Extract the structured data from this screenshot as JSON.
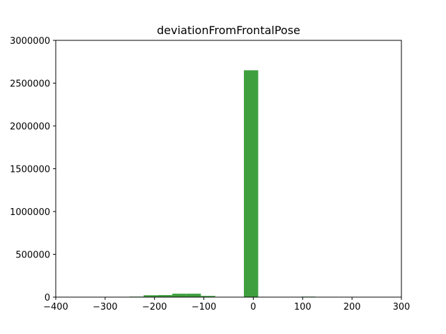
{
  "chart_data": {
    "type": "bar",
    "title": "deviationFromFrontalPose",
    "xlabel": "",
    "ylabel": "",
    "xlim": [
      -400,
      300
    ],
    "ylim": [
      0,
      3000000
    ],
    "xticks": [
      -400,
      -300,
      -200,
      -100,
      0,
      100,
      200,
      300
    ],
    "xtick_labels": [
      "−400",
      "−300",
      "−200",
      "−100",
      "0",
      "100",
      "200",
      "300"
    ],
    "yticks": [
      0,
      500000,
      1000000,
      1500000,
      2000000,
      2500000,
      3000000
    ],
    "ytick_labels": [
      "0",
      "500000",
      "1000000",
      "1500000",
      "2000000",
      "2500000",
      "3000000"
    ],
    "grid": false,
    "bar_color": "#3f9f3f",
    "bins": [
      {
        "x0": -280,
        "x1": -251,
        "value": 3000
      },
      {
        "x0": -251,
        "x1": -222,
        "value": 6000
      },
      {
        "x0": -222,
        "x1": -193,
        "value": 22000
      },
      {
        "x0": -193,
        "x1": -164,
        "value": 24000
      },
      {
        "x0": -164,
        "x1": -135,
        "value": 40000
      },
      {
        "x0": -135,
        "x1": -106,
        "value": 40000
      },
      {
        "x0": -106,
        "x1": -77,
        "value": 14000
      },
      {
        "x0": -77,
        "x1": -48,
        "value": 0
      },
      {
        "x0": -48,
        "x1": -19,
        "value": 0
      },
      {
        "x0": -19,
        "x1": 10,
        "value": 2650000
      },
      {
        "x0": 10,
        "x1": 39,
        "value": 0
      },
      {
        "x0": 39,
        "x1": 68,
        "value": 0
      },
      {
        "x0": 68,
        "x1": 97,
        "value": 0
      },
      {
        "x0": 97,
        "x1": 126,
        "value": 6000
      },
      {
        "x0": 126,
        "x1": 155,
        "value": 0
      },
      {
        "x0": 155,
        "x1": 184,
        "value": 0
      },
      {
        "x0": 184,
        "x1": 213,
        "value": 0
      },
      {
        "x0": 213,
        "x1": 242,
        "value": 0
      },
      {
        "x0": 242,
        "x1": 271,
        "value": 0
      }
    ]
  }
}
